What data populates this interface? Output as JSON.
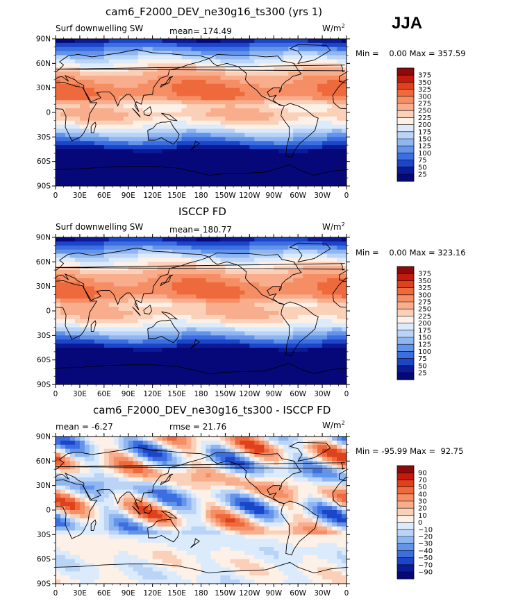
{
  "season": "JJA",
  "panels": [
    {
      "title": "cam6_F2000_DEV_ne30g16_ts300 (yrs 1)",
      "left_label": "Surf downwelling SW",
      "center_label": "mean= 174.49",
      "units": "W/m",
      "units_exp": "2",
      "minmax": "Min =    0.00 Max = 357.59",
      "levels": [
        "375",
        "350",
        "325",
        "300",
        "275",
        "250",
        "225",
        "200",
        "175",
        "150",
        "125",
        "100",
        "75",
        "50",
        "25"
      ],
      "colors": [
        "#8c0a0a",
        "#c41a0e",
        "#e0401c",
        "#ee6a3c",
        "#f58e64",
        "#f8ad8c",
        "#fbd0b8",
        "#fdf0e6",
        "#dcebfb",
        "#b9d4f7",
        "#8fb6f0",
        "#6394ea",
        "#3c6ee2",
        "#1c46c8",
        "#0c1a96",
        "#06087a"
      ],
      "kind": "sw"
    },
    {
      "title": "ISCCP FD",
      "left_label": "Surf downwelling SW",
      "center_label": "mean= 180.77",
      "units": "W/m",
      "units_exp": "2",
      "minmax": "Min =    0.00 Max = 323.16",
      "levels": [
        "375",
        "350",
        "325",
        "300",
        "275",
        "250",
        "225",
        "200",
        "175",
        "150",
        "125",
        "100",
        "75",
        "50",
        "25"
      ],
      "colors": [
        "#8c0a0a",
        "#c41a0e",
        "#e0401c",
        "#ee6a3c",
        "#f58e64",
        "#f8ad8c",
        "#fbd0b8",
        "#fdf0e6",
        "#dcebfb",
        "#b9d4f7",
        "#8fb6f0",
        "#6394ea",
        "#3c6ee2",
        "#1c46c8",
        "#0c1a96",
        "#06087a"
      ],
      "kind": "sw"
    },
    {
      "title": "cam6_F2000_DEV_ne30g16_ts300 - ISCCP FD",
      "left_label": "mean =   -6.27",
      "center_label": "rmse =  21.76",
      "units": "W/m",
      "units_exp": "2",
      "minmax": "Min = -95.99 Max =  92.75",
      "levels": [
        "90",
        "70",
        "50",
        "40",
        "30",
        "20",
        "10",
        "0",
        "−10",
        "−20",
        "−30",
        "−40",
        "−50",
        "−70",
        "−90"
      ],
      "colors": [
        "#8c0a0a",
        "#c41a0e",
        "#e0401c",
        "#ee6a3c",
        "#f58e64",
        "#f8ad8c",
        "#fbd0b8",
        "#fdf0e6",
        "#dcebfb",
        "#b9d4f7",
        "#8fb6f0",
        "#6394ea",
        "#3c6ee2",
        "#1c46c8",
        "#0c1a96",
        "#06087a"
      ],
      "kind": "diff"
    }
  ],
  "lat_ticks": [
    "90N",
    "60N",
    "30N",
    "0",
    "30S",
    "60S",
    "90S"
  ],
  "lon_ticks": [
    "0",
    "30E",
    "60E",
    "90E",
    "120E",
    "150E",
    "180",
    "150W",
    "120W",
    "90W",
    "60W",
    "30W",
    "0"
  ]
}
